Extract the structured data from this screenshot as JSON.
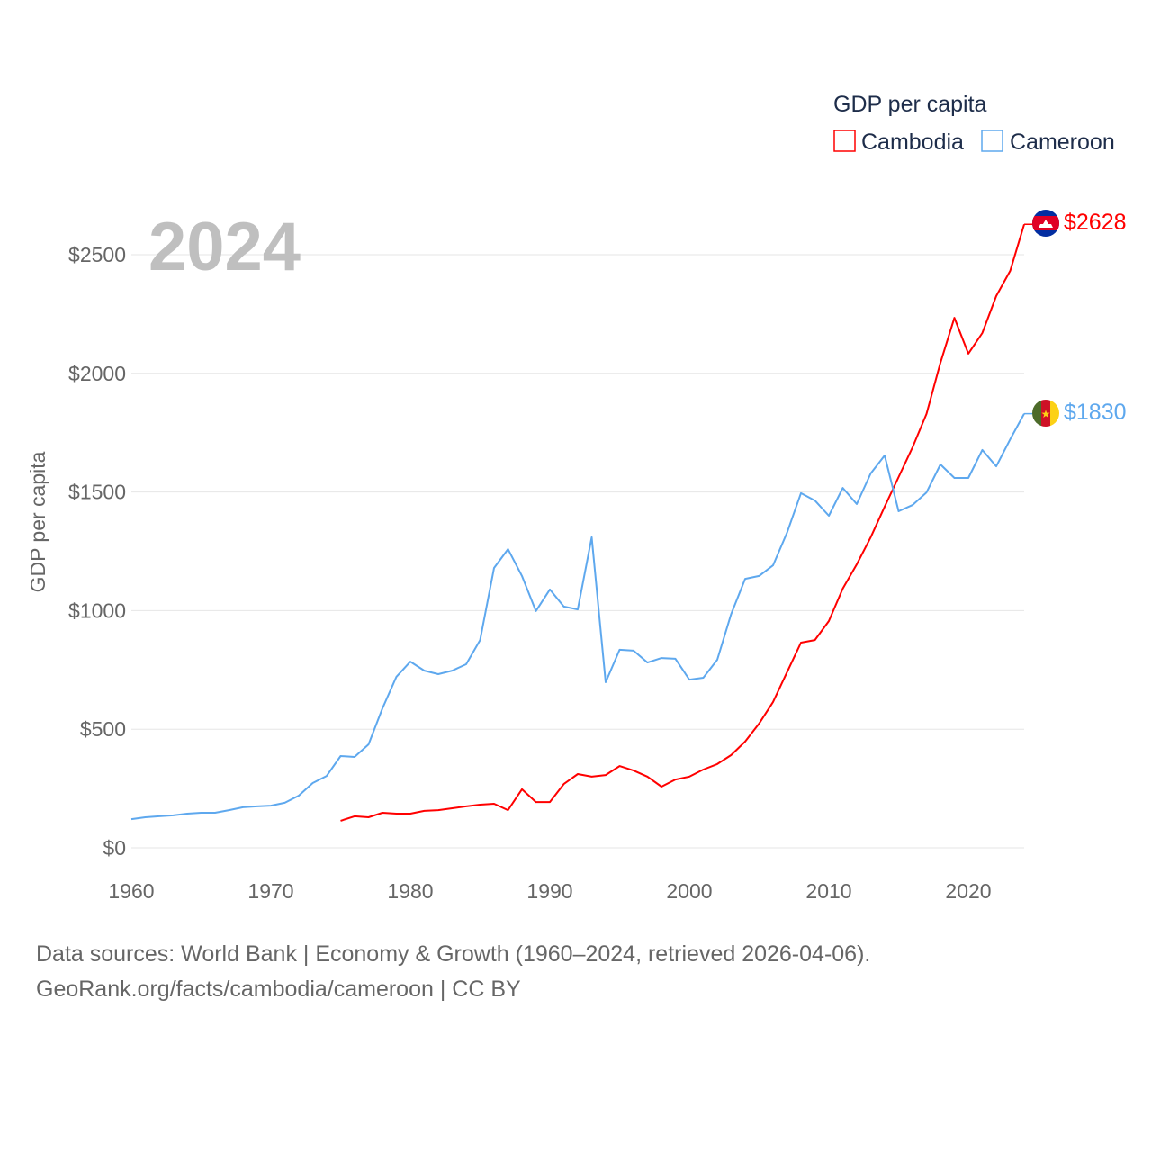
{
  "chart_data": {
    "type": "line",
    "title": "GDP per capita",
    "year_label": "2024",
    "xlabel": "",
    "ylabel": "GDP per capita",
    "xlim": [
      1960,
      2024
    ],
    "ylim": [
      0,
      2500
    ],
    "x_ticks": [
      1960,
      1970,
      1980,
      1990,
      2000,
      2010,
      2020
    ],
    "y_ticks": [
      {
        "v": 0,
        "label": "$0"
      },
      {
        "v": 500,
        "label": "$500"
      },
      {
        "v": 1000,
        "label": "$1000"
      },
      {
        "v": 1500,
        "label": "$1500"
      },
      {
        "v": 2000,
        "label": "$2000"
      },
      {
        "v": 2500,
        "label": "$2500"
      }
    ],
    "grid": true,
    "legend": {
      "title": "GDP per capita",
      "placement": "top-right"
    },
    "series": [
      {
        "name": "Cambodia",
        "color": "#ff0000",
        "end_label": "$2628",
        "start_year": 1975,
        "values": [
          114,
          133,
          129,
          148,
          144,
          144,
          156,
          159,
          167,
          175,
          182,
          186,
          159,
          247,
          193,
          193,
          269,
          311,
          300,
          307,
          345,
          326,
          300,
          258,
          288,
          300,
          330,
          353,
          391,
          448,
          524,
          615,
          740,
          865,
          876,
          956,
          1093,
          1195,
          1309,
          1438,
          1563,
          1688,
          1829,
          2045,
          2234,
          2083,
          2170,
          2326,
          2432,
          2628
        ]
      },
      {
        "name": "Cameroon",
        "color": "#5ea8ee",
        "end_label": "$1830",
        "start_year": 1960,
        "values": [
          121,
          129,
          133,
          137,
          144,
          148,
          148,
          159,
          171,
          175,
          178,
          190,
          220,
          273,
          303,
          387,
          383,
          436,
          588,
          721,
          785,
          747,
          732,
          747,
          774,
          876,
          1180,
          1259,
          1146,
          998,
          1089,
          1017,
          1005,
          1309,
          698,
          835,
          831,
          781,
          800,
          797,
          709,
          717,
          793,
          986,
          1134,
          1146,
          1191,
          1328,
          1495,
          1464,
          1400,
          1517,
          1449,
          1578,
          1654,
          1419,
          1445,
          1498,
          1616,
          1559,
          1559,
          1677,
          1608,
          1722,
          1830
        ]
      }
    ]
  },
  "footer": {
    "line1": "Data sources: World Bank | Economy & Growth (1960–2024, retrieved 2026-04-06).",
    "line2": "GeoRank.org/facts/cambodia/cameroon | CC BY"
  }
}
